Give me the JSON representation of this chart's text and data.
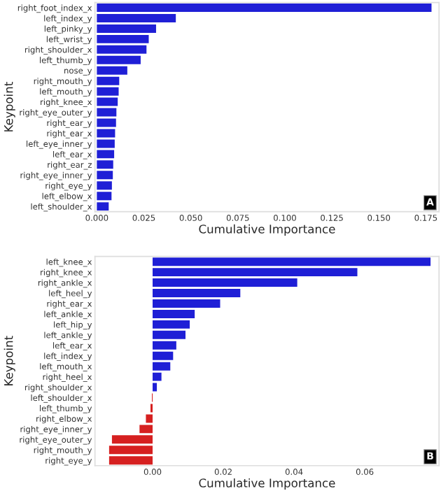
{
  "chart_data": [
    {
      "type": "bar",
      "orientation": "horizontal",
      "xlabel": "Cumulative Importance",
      "ylabel": "Keypoint",
      "annotations": [
        "A"
      ],
      "categories": [
        "right_foot_index_x",
        "left_index_y",
        "left_pinky_y",
        "left_wrist_y",
        "right_shoulder_x",
        "left_thumb_y",
        "nose_y",
        "right_mouth_y",
        "left_mouth_y",
        "right_knee_x",
        "right_eye_outer_y",
        "right_ear_y",
        "right_ear_x",
        "left_eye_inner_y",
        "left_ear_x",
        "right_ear_z",
        "right_eye_inner_y",
        "right_eye_y",
        "left_elbow_x",
        "left_shoulder_x"
      ],
      "values": [
        0.178,
        0.042,
        0.0315,
        0.0276,
        0.0264,
        0.0233,
        0.0162,
        0.0119,
        0.0116,
        0.0111,
        0.0104,
        0.0102,
        0.0097,
        0.0095,
        0.0092,
        0.0087,
        0.0085,
        0.008,
        0.0078,
        0.0063
      ],
      "colors": [
        "#1f1fd6",
        "#1f1fd6",
        "#1f1fd6",
        "#1f1fd6",
        "#1f1fd6",
        "#1f1fd6",
        "#1f1fd6",
        "#1f1fd6",
        "#1f1fd6",
        "#1f1fd6",
        "#1f1fd6",
        "#1f1fd6",
        "#1f1fd6",
        "#1f1fd6",
        "#1f1fd6",
        "#1f1fd6",
        "#1f1fd6",
        "#1f1fd6",
        "#1f1fd6",
        "#1f1fd6"
      ],
      "xlim": [
        -0.001,
        0.182
      ],
      "xticks": [
        {
          "value": 0,
          "label": "0.000"
        },
        {
          "value": 0.025,
          "label": "0.025"
        },
        {
          "value": 0.05,
          "label": "0.050"
        },
        {
          "value": 0.075,
          "label": "0.075"
        },
        {
          "value": 0.1,
          "label": "0.100"
        },
        {
          "value": 0.125,
          "label": "0.125"
        },
        {
          "value": 0.15,
          "label": "0.150"
        },
        {
          "value": 0.175,
          "label": "0.175"
        }
      ],
      "grid": false
    },
    {
      "type": "bar",
      "orientation": "horizontal",
      "xlabel": "Cumulative Importance",
      "ylabel": "Keypoint",
      "annotations": [
        "B"
      ],
      "categories": [
        "left_knee_x",
        "right_knee_x",
        "right_ankle_x",
        "left_heel_y",
        "right_ear_x",
        "left_ankle_x",
        "left_hip_y",
        "left_ankle_y",
        "left_ear_x",
        "left_index_y",
        "left_mouth_x",
        "right_heel_x",
        "right_shoulder_x",
        "left_shoulder_x",
        "left_thumb_y",
        "right_elbow_x",
        "right_eye_inner_y",
        "right_eye_outer_y",
        "right_mouth_y",
        "right_eye_y"
      ],
      "values": [
        0.0786,
        0.0579,
        0.0409,
        0.0248,
        0.0191,
        0.0119,
        0.0105,
        0.0093,
        0.0067,
        0.0058,
        0.005,
        0.0025,
        0.0012,
        -0.0002,
        -0.0006,
        -0.0019,
        -0.0037,
        -0.0115,
        -0.0123,
        -0.0123
      ],
      "colors": [
        "#1f1fd6",
        "#1f1fd6",
        "#1f1fd6",
        "#1f1fd6",
        "#1f1fd6",
        "#1f1fd6",
        "#1f1fd6",
        "#1f1fd6",
        "#1f1fd6",
        "#1f1fd6",
        "#1f1fd6",
        "#1f1fd6",
        "#1f1fd6",
        "#d62020",
        "#d62020",
        "#d62020",
        "#d62020",
        "#d62020",
        "#d62020",
        "#d62020"
      ],
      "xlim": [
        -0.0163,
        0.081
      ],
      "xticks": [
        {
          "value": 0,
          "label": "0.00"
        },
        {
          "value": 0.02,
          "label": "0.02"
        },
        {
          "value": 0.04,
          "label": "0.04"
        },
        {
          "value": 0.06,
          "label": "0.06"
        }
      ],
      "grid": false
    }
  ]
}
